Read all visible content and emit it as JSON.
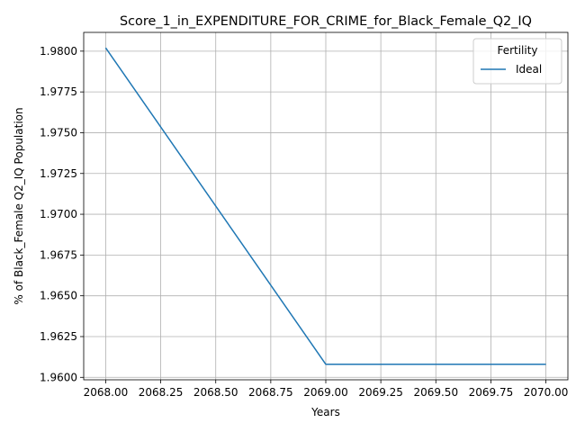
{
  "chart_data": {
    "type": "line",
    "title": "Score_1_in_EXPENDITURE_FOR_CRIME_for_Black_Female_Q2_IQ",
    "xlabel": "Years",
    "ylabel": "% of Black_Female Q2_IQ Population",
    "xlim": [
      2067.9,
      2070.1
    ],
    "ylim": [
      1.95985,
      1.98115
    ],
    "x_ticks": [
      2068.0,
      2068.25,
      2068.5,
      2068.75,
      2069.0,
      2069.25,
      2069.5,
      2069.75,
      2070.0
    ],
    "x_tick_labels": [
      "2068.00",
      "2068.25",
      "2068.50",
      "2068.75",
      "2069.00",
      "2069.25",
      "2069.50",
      "2069.75",
      "2070.00"
    ],
    "y_ticks": [
      1.96,
      1.9625,
      1.965,
      1.9675,
      1.97,
      1.9725,
      1.975,
      1.9775,
      1.98
    ],
    "y_tick_labels": [
      "1.9600",
      "1.9625",
      "1.9650",
      "1.9675",
      "1.9700",
      "1.9725",
      "1.9750",
      "1.9775",
      "1.9800"
    ],
    "grid": true,
    "legend": {
      "title": "Fertility",
      "placement": "top-right"
    },
    "series": [
      {
        "name": "Ideal",
        "color": "#1f77b4",
        "x": [
          2068,
          2069,
          2070
        ],
        "y": [
          1.9802,
          1.9608,
          1.9608
        ]
      }
    ]
  }
}
